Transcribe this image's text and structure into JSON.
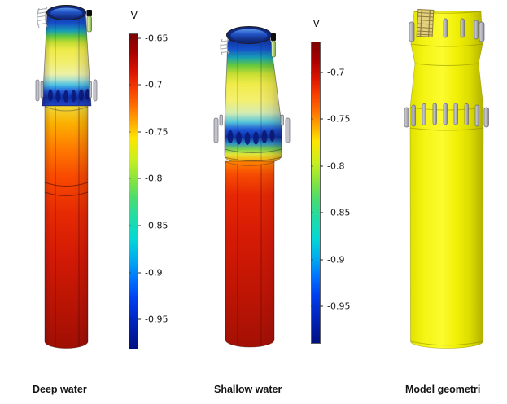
{
  "figure": {
    "background": "#ffffff",
    "description": "Three 3D tower renderings: two potential-distribution results and the model geometry"
  },
  "chart_data": {
    "type": "heatmap",
    "title": "",
    "legend_position": "right-of-each-panel",
    "panels": [
      {
        "label": "Deep water",
        "colorbar": {
          "title": "V",
          "ticks": [
            "-0.65",
            "-0.7",
            "-0.75",
            "-0.8",
            "-0.85",
            "-0.9",
            "-0.95"
          ],
          "range_top": -0.645,
          "range_bottom": -0.982
        }
      },
      {
        "label": "Shallow water",
        "colorbar": {
          "title": "V",
          "ticks": [
            "-0.7",
            "-0.75",
            "-0.8",
            "-0.85",
            "-0.9",
            "-0.95"
          ],
          "range_top": -0.667,
          "range_bottom": -0.99
        }
      },
      {
        "label": "Model geometri",
        "colorbar": null,
        "geometry_color": "#f0f000",
        "anode_color": "#b5b6be"
      }
    ],
    "colormap": {
      "name": "rainbow",
      "stops": [
        {
          "pos": 0.0,
          "color": "#7c0403"
        },
        {
          "pos": 0.06,
          "color": "#aa0000"
        },
        {
          "pos": 0.12,
          "color": "#dc1400"
        },
        {
          "pos": 0.17,
          "color": "#f63b00"
        },
        {
          "pos": 0.23,
          "color": "#ff7100"
        },
        {
          "pos": 0.28,
          "color": "#ffaa00"
        },
        {
          "pos": 0.33,
          "color": "#fde500"
        },
        {
          "pos": 0.4,
          "color": "#c8ef1e"
        },
        {
          "pos": 0.46,
          "color": "#8ae43c"
        },
        {
          "pos": 0.52,
          "color": "#4bdc6e"
        },
        {
          "pos": 0.58,
          "color": "#21dca4"
        },
        {
          "pos": 0.65,
          "color": "#04d8d4"
        },
        {
          "pos": 0.72,
          "color": "#00aaf0"
        },
        {
          "pos": 0.78,
          "color": "#0072ff"
        },
        {
          "pos": 0.84,
          "color": "#0040f0"
        },
        {
          "pos": 0.9,
          "color": "#0028c8"
        },
        {
          "pos": 1.0,
          "color": "#001080"
        }
      ]
    }
  }
}
